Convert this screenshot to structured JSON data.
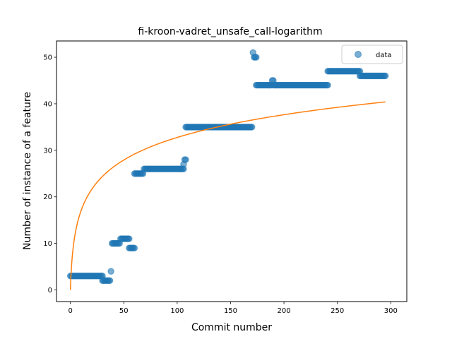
{
  "chart_data": {
    "type": "scatter",
    "title": "fi-kroon-vadret_unsafe_call-logarithm",
    "xlabel": "Commit number",
    "ylabel": "Number of instance of a feature",
    "xlim": [
      -13,
      315
    ],
    "ylim": [
      -2.5,
      53.5
    ],
    "xticks": [
      0,
      50,
      100,
      150,
      200,
      250,
      300
    ],
    "yticks": [
      0,
      10,
      20,
      30,
      40,
      50
    ],
    "grid": false,
    "legend": {
      "placement": "top-right",
      "entries": [
        "data"
      ]
    },
    "colors": {
      "data": "#1f77b4",
      "fit": "#ff7f0e"
    },
    "series": [
      {
        "name": "data",
        "kind": "points",
        "segments": [
          {
            "x_start": 0,
            "x_end": 30,
            "y": 3
          },
          {
            "x_start": 30,
            "x_end": 37,
            "y": 2
          },
          {
            "x_start": 38,
            "x_end": 38,
            "y": 4
          },
          {
            "x_start": 39,
            "x_end": 46,
            "y": 10
          },
          {
            "x_start": 47,
            "x_end": 55,
            "y": 11
          },
          {
            "x_start": 55,
            "x_end": 60,
            "y": 9
          },
          {
            "x_start": 60,
            "x_end": 68,
            "y": 25
          },
          {
            "x_start": 69,
            "x_end": 106,
            "y": 26
          },
          {
            "x_start": 106,
            "x_end": 106,
            "y": 27
          },
          {
            "x_start": 107,
            "x_end": 108,
            "y": 28
          },
          {
            "x_start": 108,
            "x_end": 170,
            "y": 35
          },
          {
            "x_start": 171,
            "x_end": 171,
            "y": 51
          },
          {
            "x_start": 172,
            "x_end": 174,
            "y": 50
          },
          {
            "x_start": 174,
            "x_end": 188,
            "y": 44
          },
          {
            "x_start": 189,
            "x_end": 190,
            "y": 45
          },
          {
            "x_start": 190,
            "x_end": 241,
            "y": 44
          },
          {
            "x_start": 241,
            "x_end": 271,
            "y": 47
          },
          {
            "x_start": 271,
            "x_end": 295,
            "y": 46
          }
        ]
      },
      {
        "kind": "line",
        "model": "logarithm",
        "a": 7.1,
        "b": 0.0,
        "x_range": [
          0,
          295
        ]
      }
    ]
  }
}
